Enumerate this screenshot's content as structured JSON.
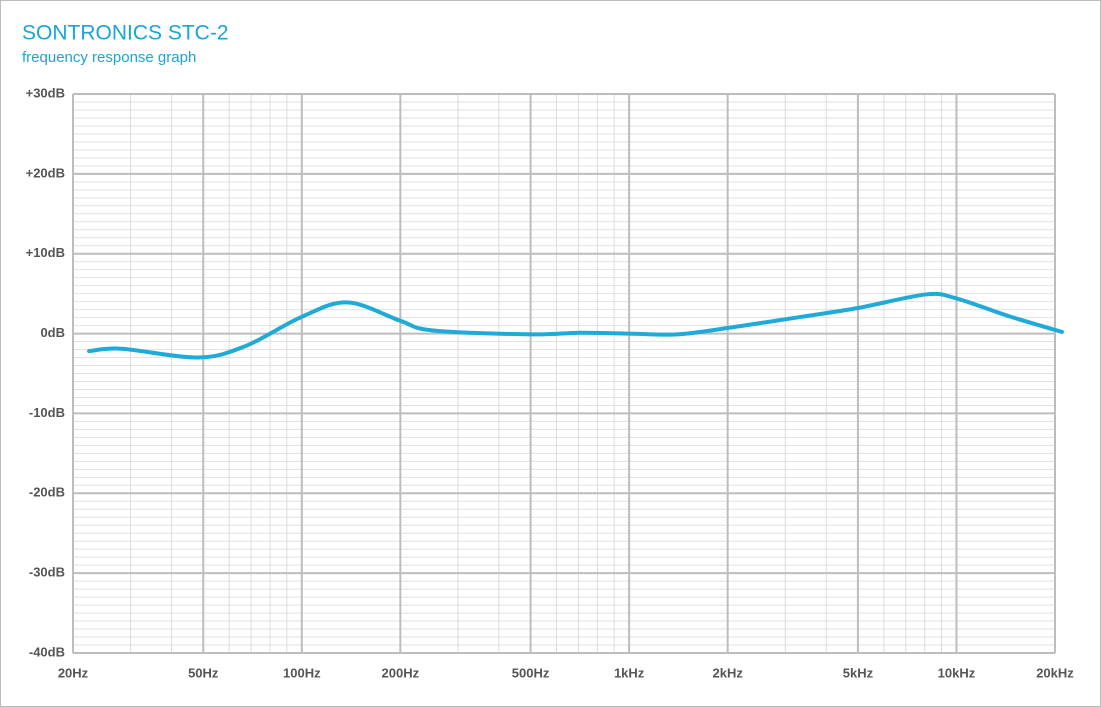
{
  "chart_data": {
    "type": "line",
    "title": "SONTRONICS STC-2",
    "subtitle": "frequency response graph",
    "x": [
      22.4,
      28.2,
      48,
      67,
      100,
      138,
      200,
      250,
      500,
      707,
      1000,
      1400,
      2000,
      3360,
      5000,
      8080,
      10000,
      14400,
      21000
    ],
    "series": [
      {
        "name": "STC-2",
        "color": "#1faad8",
        "values": [
          -2.2,
          -1.9,
          -3.0,
          -1.6,
          2.1,
          3.9,
          1.6,
          0.4,
          -0.1,
          0.1,
          0,
          -0.1,
          0.7,
          2.1,
          3.2,
          4.9,
          4.4,
          2.2,
          0.2
        ]
      }
    ],
    "xlim": [
      20,
      20000
    ],
    "xscale": "log",
    "xticks": [
      {
        "value": 20,
        "label": "20Hz"
      },
      {
        "value": 50,
        "label": "50Hz"
      },
      {
        "value": 100,
        "label": "100Hz"
      },
      {
        "value": 200,
        "label": "200Hz"
      },
      {
        "value": 500,
        "label": "500Hz"
      },
      {
        "value": 1000,
        "label": "1kHz"
      },
      {
        "value": 2000,
        "label": "2kHz"
      },
      {
        "value": 5000,
        "label": "5kHz"
      },
      {
        "value": 10000,
        "label": "10kHz"
      },
      {
        "value": 20000,
        "label": "20kHz"
      }
    ],
    "ylim": [
      -40,
      30
    ],
    "yticks": [
      {
        "value": -40,
        "label": "-40dB"
      },
      {
        "value": -30,
        "label": "-30dB"
      },
      {
        "value": -20,
        "label": "-20dB"
      },
      {
        "value": -10,
        "label": "-10dB"
      },
      {
        "value": 0,
        "label": "0dB"
      },
      {
        "value": 10,
        "label": "+10dB"
      },
      {
        "value": 20,
        "label": "+20dB"
      },
      {
        "value": 30,
        "label": "+30dB"
      }
    ],
    "grid": true,
    "minor_grid": true
  }
}
